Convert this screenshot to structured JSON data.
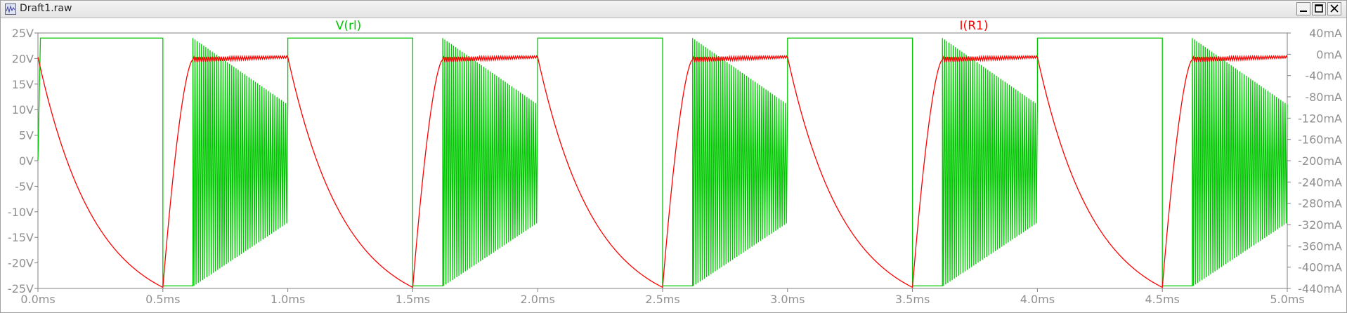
{
  "window": {
    "title": "Draft1.raw"
  },
  "chart_data": {
    "type": "line",
    "grid": false,
    "x_axis": {
      "range_ms": [
        0,
        5
      ],
      "ticks": [
        0,
        0.5,
        1,
        1.5,
        2,
        2.5,
        3,
        3.5,
        4,
        4.5,
        5
      ],
      "tick_labels": [
        "0.0ms",
        "0.5ms",
        "1.0ms",
        "1.5ms",
        "2.0ms",
        "2.5ms",
        "3.0ms",
        "3.5ms",
        "4.0ms",
        "4.5ms",
        "5.0ms"
      ]
    },
    "left_axis": {
      "range_V": [
        -25,
        25
      ],
      "ticks": [
        25,
        20,
        15,
        10,
        5,
        0,
        -5,
        -10,
        -15,
        -20,
        -25
      ],
      "tick_labels": [
        "25V",
        "20V",
        "15V",
        "10V",
        "5V",
        "0V",
        "-5V",
        "-10V",
        "-15V",
        "-20V",
        "-25V"
      ]
    },
    "right_axis": {
      "range_mA": [
        -440,
        40
      ],
      "ticks": [
        40,
        0,
        -40,
        -80,
        -120,
        -160,
        -200,
        -240,
        -280,
        -320,
        -360,
        -400,
        -440
      ],
      "tick_labels": [
        "40mA",
        "0mA",
        "-40mA",
        "-80mA",
        "-120mA",
        "-160mA",
        "-200mA",
        "-240mA",
        "-280mA",
        "-320mA",
        "-360mA",
        "-400mA",
        "-440mA"
      ]
    },
    "series": [
      {
        "name": "V(rl)",
        "axis": "left",
        "color": "#00c800",
        "period_ms": 1.0,
        "description_points": [
          {
            "t": 0.0,
            "v": 0.0
          },
          {
            "t": 0.01,
            "v": 24.0
          },
          {
            "t": 0.5,
            "v": 24.0
          },
          {
            "t": 0.5,
            "v": -24.5
          },
          {
            "t": 0.62,
            "v": -24.5
          },
          {
            "t": 0.625,
            "v": 24.0
          },
          {
            "t": 1.0,
            "v": 11.0
          }
        ],
        "ringing": {
          "start_ms": 0.62,
          "end_ms": 1.0,
          "upper_start_V": 24.0,
          "upper_end_V": 11.0,
          "lower_start_V": -24.5,
          "lower_end_V": -12.0,
          "cycles": 44
        }
      },
      {
        "name": "I(R1)",
        "axis": "right",
        "color": "#ff0000",
        "period_ms": 1.0,
        "description_points": [
          {
            "t": 0.0,
            "i": -5
          },
          {
            "t": 0.5,
            "i": -438
          },
          {
            "t": 0.62,
            "i": -10
          },
          {
            "t": 1.0,
            "i": -5
          }
        ]
      }
    ],
    "legend": [
      {
        "label": "V(rl)",
        "color": "#00c800"
      },
      {
        "label": "I(R1)",
        "color": "#ff0000"
      }
    ]
  }
}
